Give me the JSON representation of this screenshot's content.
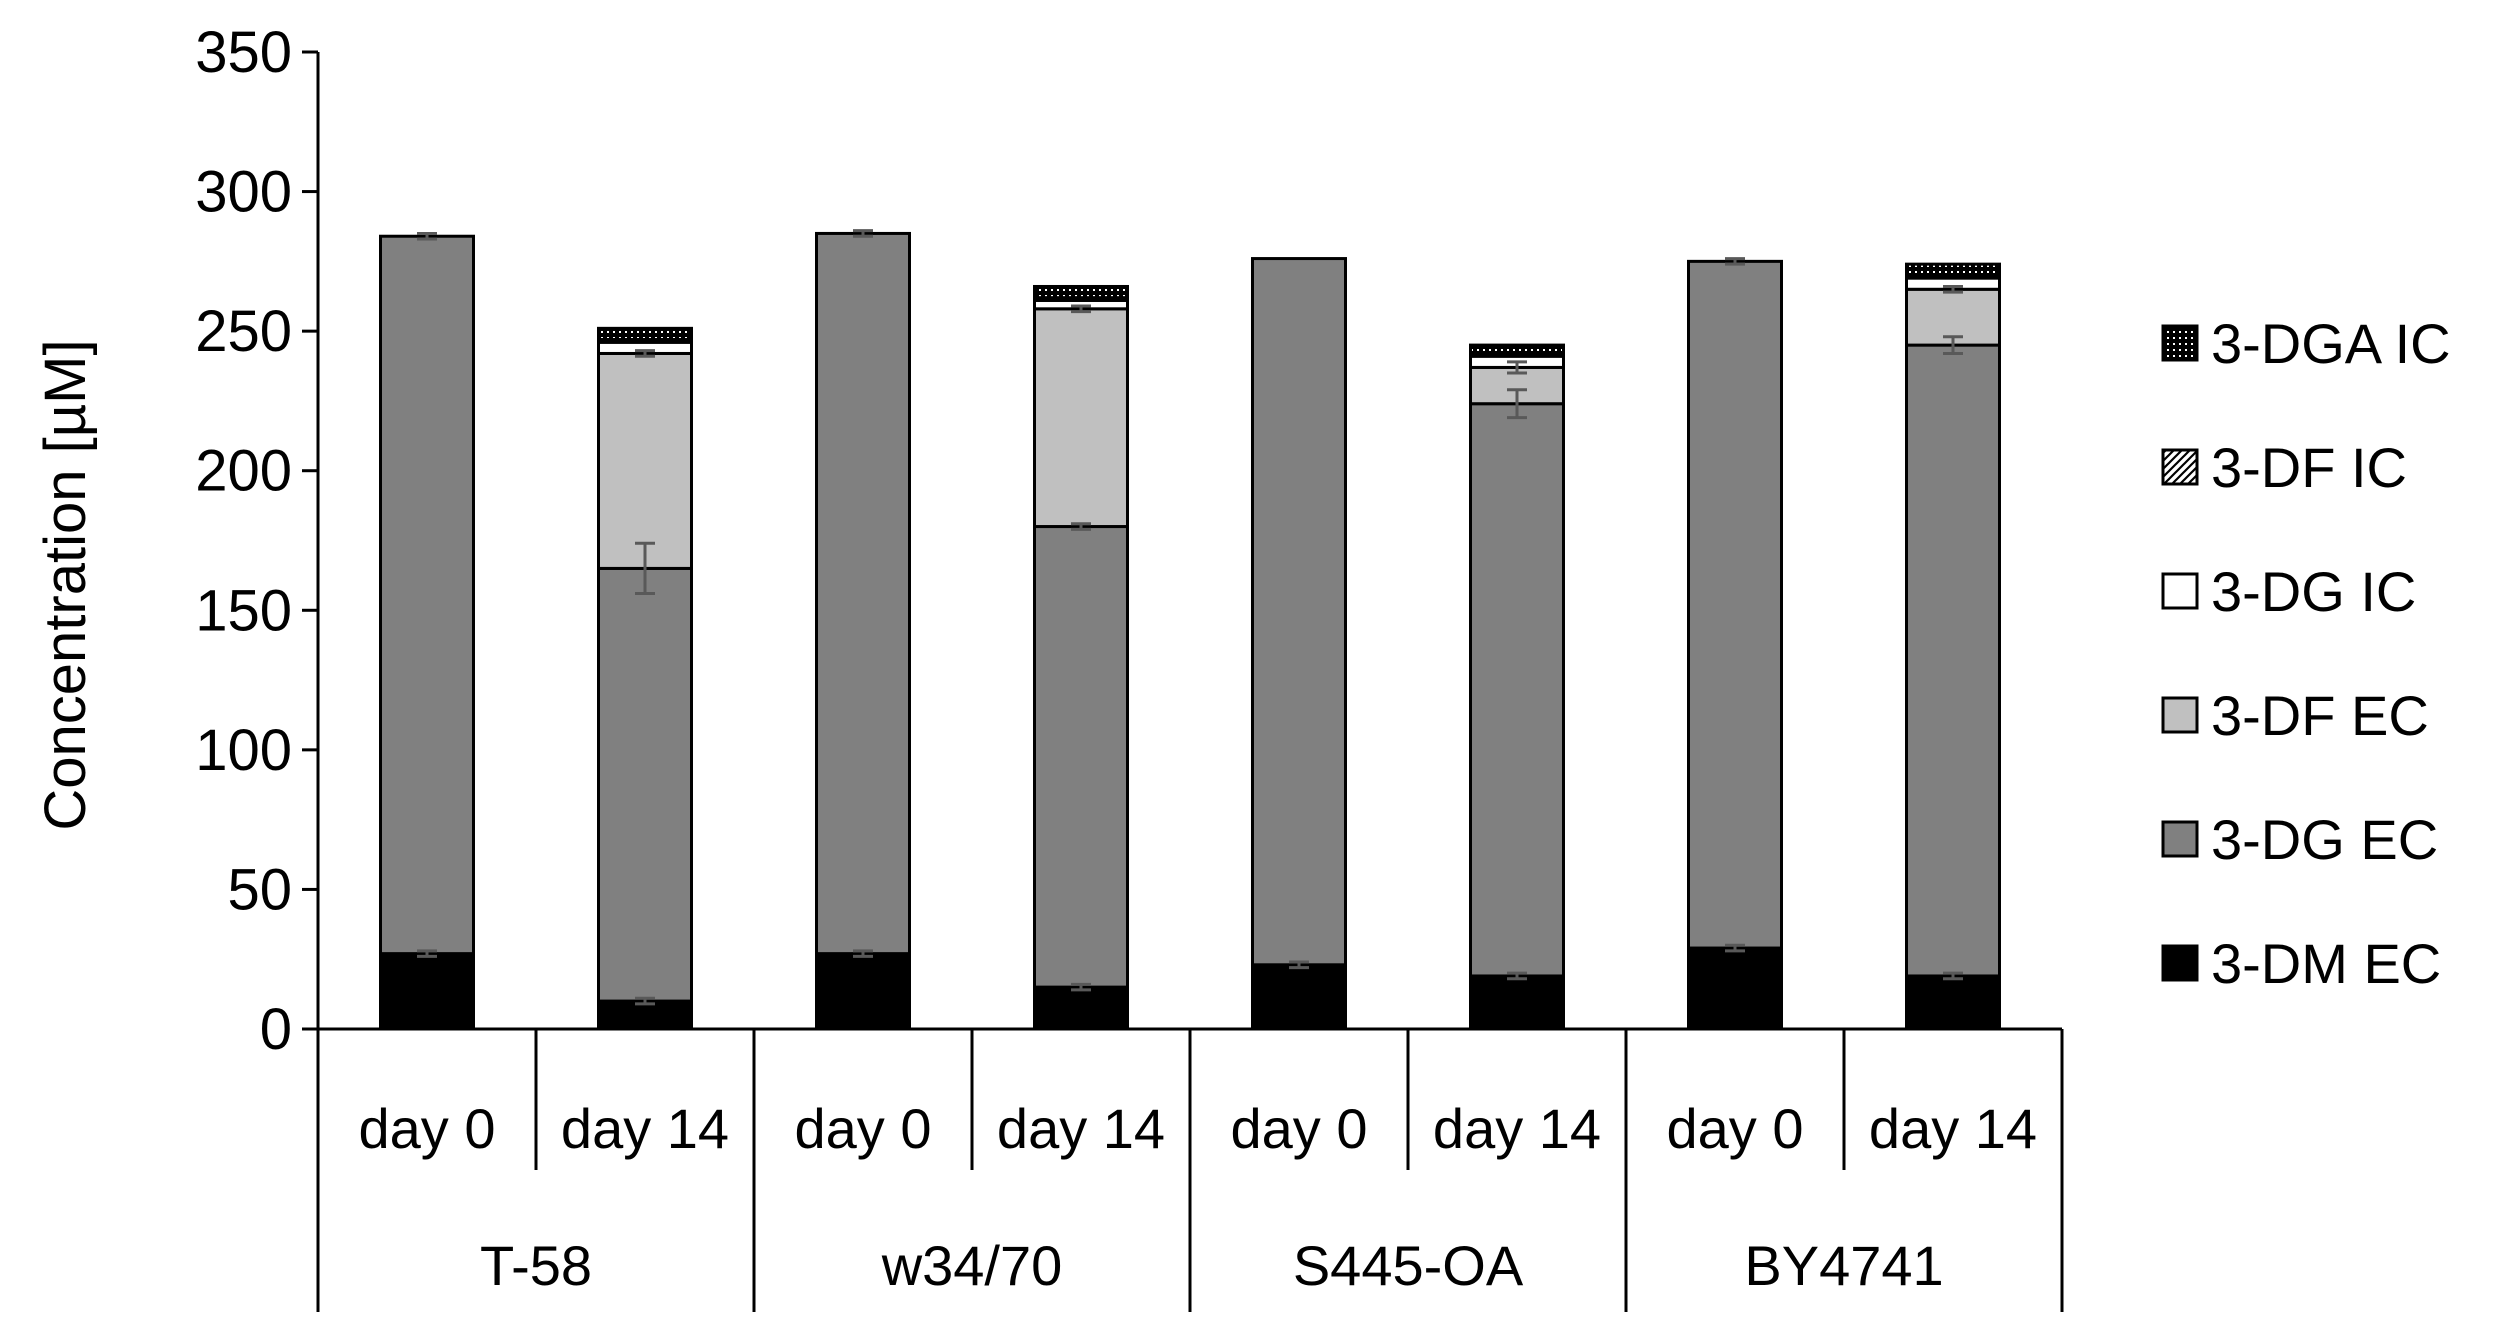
{
  "chart_data": {
    "type": "bar",
    "stacked": true,
    "ylabel": "Concentration [µM]",
    "xlabel": "",
    "ylim": [
      0,
      350
    ],
    "yticks": [
      0,
      50,
      100,
      150,
      200,
      250,
      300,
      350
    ],
    "grid": false,
    "legend_position": "right",
    "groups": [
      {
        "name": "T-58",
        "categories": [
          "day 0",
          "day 14"
        ]
      },
      {
        "name": "w34/70",
        "categories": [
          "day 0",
          "day 14"
        ]
      },
      {
        "name": "S445-OA",
        "categories": [
          "day 0",
          "day 14"
        ]
      },
      {
        "name": "BY4741",
        "categories": [
          "day 0",
          "day 14"
        ]
      }
    ],
    "categories": [
      "day 0",
      "day 14",
      "day 0",
      "day 14",
      "day 0",
      "day 14",
      "day 0",
      "day 14"
    ],
    "series": [
      {
        "name": "3-DM EC",
        "color": "#000000",
        "pattern": "solid",
        "values": [
          27,
          10,
          27,
          15,
          23,
          19,
          29,
          19
        ]
      },
      {
        "name": "3-DG EC",
        "color": "#808080",
        "pattern": "solid",
        "values": [
          257,
          155,
          258,
          165,
          253,
          205,
          246,
          226
        ]
      },
      {
        "name": "3-DF EC",
        "color": "#c0c0c0",
        "pattern": "solid",
        "values": [
          0,
          77,
          0,
          78,
          0,
          13,
          0,
          20
        ]
      },
      {
        "name": "3-DG IC",
        "color": "#ffffff",
        "pattern": "solid",
        "values": [
          0,
          4,
          0,
          3,
          0,
          4,
          0,
          4
        ]
      },
      {
        "name": "3-DF IC",
        "color": "#000000",
        "pattern": "hatch",
        "values": [
          0,
          1,
          0,
          1,
          0,
          1,
          0,
          1
        ]
      },
      {
        "name": "3-DGA IC",
        "color": "#000000",
        "pattern": "dots",
        "values": [
          0,
          4,
          0,
          4,
          0,
          3,
          0,
          4
        ]
      }
    ],
    "error_bars": [
      {
        "series": "3-DM EC",
        "errors": [
          1,
          1,
          1,
          1,
          1,
          1,
          1,
          1
        ]
      },
      {
        "series": "3-DG EC",
        "errors": [
          1,
          9,
          1,
          1,
          0,
          5,
          1,
          3
        ]
      },
      {
        "series": "3-DF EC",
        "errors": [
          0,
          1,
          0,
          1,
          0,
          2,
          0,
          1
        ]
      }
    ],
    "legend_order": [
      "3-DGA IC",
      "3-DF IC",
      "3-DG IC",
      "3-DF EC",
      "3-DG EC",
      "3-DM EC"
    ]
  }
}
